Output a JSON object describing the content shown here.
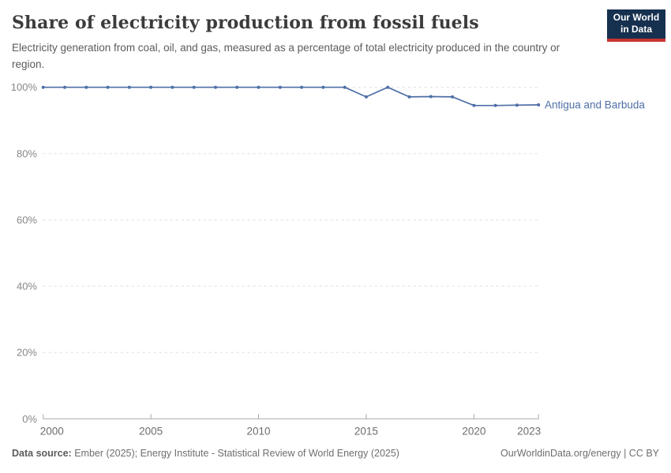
{
  "header": {
    "title": "Share of electricity production from fossil fuels",
    "subtitle": "Electricity generation from coal, oil, and gas, measured as a percentage of total electricity produced in the country or region.",
    "logo": {
      "line1": "Our World",
      "line2": "in Data",
      "background_color": "#16304f",
      "accent_color": "#c7342f"
    }
  },
  "chart_data": {
    "type": "line",
    "title": "Share of electricity production from fossil fuels",
    "xlabel": "",
    "ylabel": "",
    "xlim": [
      2000,
      2023
    ],
    "ylim": [
      0,
      100
    ],
    "x_ticks": [
      2000,
      2005,
      2010,
      2015,
      2020,
      2023
    ],
    "y_ticks": [
      0,
      20,
      40,
      60,
      80,
      100
    ],
    "y_tick_suffix": "%",
    "grid": "horizontal-dashed",
    "legend_position": "end-of-line-label",
    "x": [
      2000,
      2001,
      2002,
      2003,
      2004,
      2005,
      2006,
      2007,
      2008,
      2009,
      2010,
      2011,
      2012,
      2013,
      2014,
      2015,
      2016,
      2017,
      2018,
      2019,
      2020,
      2021,
      2022,
      2023
    ],
    "series": [
      {
        "name": "Antigua and Barbuda",
        "color": "#4e6fa6",
        "values": [
          100,
          100,
          100,
          100,
          100,
          100,
          100,
          100,
          100,
          100,
          100,
          100,
          100,
          100,
          100,
          97.1,
          100,
          97.1,
          97.2,
          97.1,
          94.5,
          94.5,
          94.6,
          94.7
        ]
      }
    ],
    "colors": {
      "grid_line": "#dcdcdc",
      "axis_line": "#a8a8a8",
      "y_tick_label": "#878787",
      "x_tick_label": "#6d6d6d"
    }
  },
  "footer": {
    "datasource_label": "Data source:",
    "datasource_text": " Ember (2025); Energy Institute - Statistical Review of World Energy (2025)",
    "credit": "OurWorldinData.org/energy | CC BY"
  }
}
